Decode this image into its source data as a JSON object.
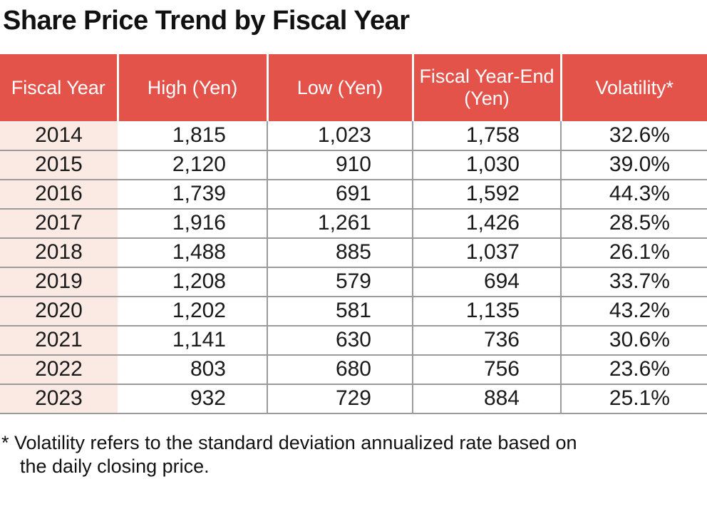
{
  "colors": {
    "header_bg": "#e4534a",
    "year_col_bg": "#fbeae3",
    "grid_line": "#9b9b9b",
    "header_text": "#ffffff",
    "body_text": "#1a1a1a"
  },
  "chart_data": {
    "type": "table",
    "title": "Share Price Trend by Fiscal Year",
    "columns": [
      "Fiscal Year",
      "High (Yen)",
      "Low (Yen)",
      "Fiscal Year-End (Yen)",
      "Volatility*"
    ],
    "rows": [
      [
        "2014",
        "1,815",
        "1,023",
        "1,758",
        "32.6%"
      ],
      [
        "2015",
        "2,120",
        "910",
        "1,030",
        "39.0%"
      ],
      [
        "2016",
        "1,739",
        "691",
        "1,592",
        "44.3%"
      ],
      [
        "2017",
        "1,916",
        "1,261",
        "1,426",
        "28.5%"
      ],
      [
        "2018",
        "1,488",
        "885",
        "1,037",
        "26.1%"
      ],
      [
        "2019",
        "1,208",
        "579",
        "694",
        "33.7%"
      ],
      [
        "2020",
        "1,202",
        "581",
        "1,135",
        "43.2%"
      ],
      [
        "2021",
        "1,141",
        "630",
        "736",
        "30.6%"
      ],
      [
        "2022",
        "803",
        "680",
        "756",
        "23.6%"
      ],
      [
        "2023",
        "932",
        "729",
        "884",
        "25.1%"
      ]
    ],
    "footnote": "* Volatility refers to the standard deviation annualized rate based on the daily closing price."
  },
  "footnote": {
    "line1": "* Volatility refers to the standard deviation annualized rate based on",
    "line2": "the daily closing price."
  }
}
